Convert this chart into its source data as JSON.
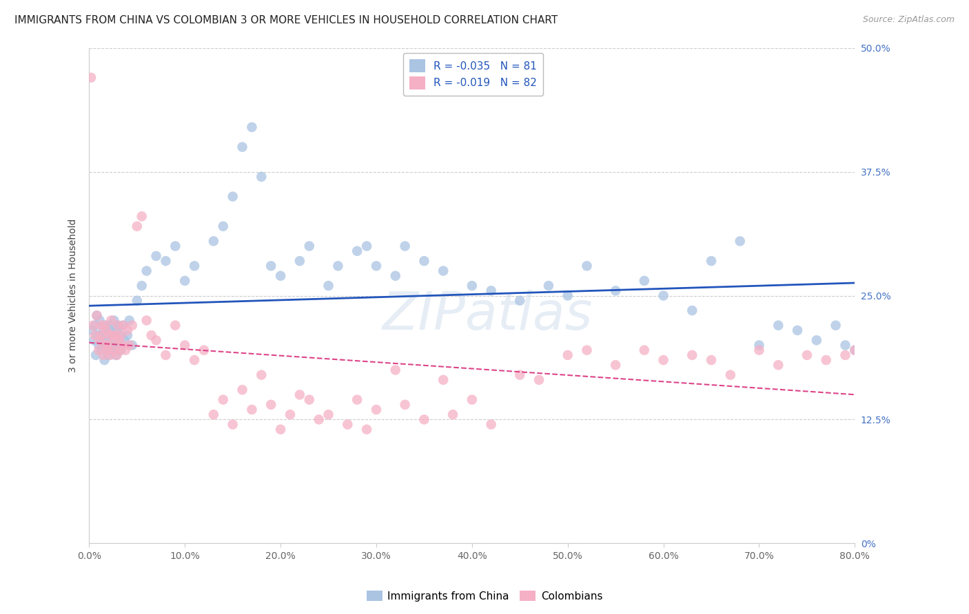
{
  "title": "IMMIGRANTS FROM CHINA VS COLOMBIAN 3 OR MORE VEHICLES IN HOUSEHOLD CORRELATION CHART",
  "source": "Source: ZipAtlas.com",
  "ylabel": "3 or more Vehicles in Household",
  "xlim": [
    0,
    80
  ],
  "ylim": [
    0,
    50
  ],
  "xticks": [
    0,
    10,
    20,
    30,
    40,
    50,
    60,
    70,
    80
  ],
  "yticks": [
    0,
    12.5,
    25,
    37.5,
    50
  ],
  "series1": {
    "label": "Immigrants from China",
    "R": -0.035,
    "N": 81,
    "color": "#aac4e2",
    "line_color": "#2255bb",
    "x": [
      0.3,
      0.5,
      0.6,
      0.7,
      0.8,
      0.9,
      1.0,
      1.1,
      1.2,
      1.3,
      1.4,
      1.5,
      1.6,
      1.7,
      1.8,
      1.9,
      2.0,
      2.1,
      2.2,
      2.3,
      2.4,
      2.5,
      2.6,
      2.7,
      2.8,
      2.9,
      3.0,
      3.1,
      3.2,
      3.3,
      3.5,
      3.7,
      4.0,
      4.2,
      4.5,
      5.0,
      5.5,
      6.0,
      7.0,
      8.0,
      9.0,
      10.0,
      11.0,
      13.0,
      14.0,
      15.0,
      16.0,
      17.0,
      18.0,
      19.0,
      20.0,
      22.0,
      23.0,
      25.0,
      26.0,
      28.0,
      29.0,
      30.0,
      32.0,
      33.0,
      35.0,
      37.0,
      40.0,
      42.0,
      45.0,
      48.0,
      50.0,
      52.0,
      55.0,
      58.0,
      60.0,
      63.0,
      65.0,
      68.0,
      70.0,
      72.0,
      74.0,
      76.0,
      78.0,
      79.0,
      80.0
    ],
    "y": [
      21.5,
      20.5,
      22.0,
      19.0,
      23.0,
      21.0,
      20.0,
      22.5,
      21.0,
      19.5,
      20.0,
      21.5,
      18.5,
      22.0,
      20.5,
      21.0,
      19.0,
      22.0,
      21.5,
      19.5,
      20.0,
      21.0,
      22.5,
      20.0,
      19.0,
      21.5,
      22.0,
      20.5,
      21.0,
      19.5,
      22.0,
      20.5,
      21.0,
      22.5,
      20.0,
      24.5,
      26.0,
      27.5,
      29.0,
      28.5,
      30.0,
      26.5,
      28.0,
      30.5,
      32.0,
      35.0,
      40.0,
      42.0,
      37.0,
      28.0,
      27.0,
      28.5,
      30.0,
      26.0,
      28.0,
      29.5,
      30.0,
      28.0,
      27.0,
      30.0,
      28.5,
      27.5,
      26.0,
      25.5,
      24.5,
      26.0,
      25.0,
      28.0,
      25.5,
      26.5,
      25.0,
      23.5,
      28.5,
      30.5,
      20.0,
      22.0,
      21.5,
      20.5,
      22.0,
      20.0,
      19.5
    ]
  },
  "series2": {
    "label": "Colombians",
    "R": -0.019,
    "N": 82,
    "color": "#f5b0c5",
    "line_color": "#dd4488",
    "x": [
      0.2,
      0.4,
      0.6,
      0.8,
      1.0,
      1.1,
      1.2,
      1.3,
      1.5,
      1.6,
      1.7,
      1.8,
      1.9,
      2.0,
      2.1,
      2.2,
      2.3,
      2.5,
      2.6,
      2.7,
      2.8,
      2.9,
      3.0,
      3.1,
      3.2,
      3.3,
      3.5,
      3.6,
      3.8,
      4.0,
      4.2,
      4.5,
      5.0,
      5.5,
      6.0,
      6.5,
      7.0,
      8.0,
      9.0,
      10.0,
      11.0,
      12.0,
      13.0,
      14.0,
      15.0,
      16.0,
      17.0,
      18.0,
      19.0,
      20.0,
      21.0,
      22.0,
      23.0,
      24.0,
      25.0,
      27.0,
      28.0,
      29.0,
      30.0,
      32.0,
      33.0,
      35.0,
      37.0,
      38.0,
      40.0,
      42.0,
      45.0,
      47.0,
      50.0,
      52.0,
      55.0,
      58.0,
      60.0,
      63.0,
      65.0,
      67.0,
      70.0,
      72.0,
      75.0,
      77.0,
      79.0,
      80.0
    ],
    "y": [
      47.0,
      22.0,
      21.0,
      23.0,
      19.5,
      20.5,
      22.0,
      21.0,
      19.0,
      22.0,
      20.0,
      21.5,
      19.5,
      20.0,
      21.0,
      19.0,
      22.5,
      21.0,
      19.5,
      20.5,
      21.0,
      19.0,
      22.0,
      20.5,
      19.5,
      21.0,
      20.0,
      22.0,
      19.5,
      21.5,
      20.0,
      22.0,
      32.0,
      33.0,
      22.5,
      21.0,
      20.5,
      19.0,
      22.0,
      20.0,
      18.5,
      19.5,
      13.0,
      14.5,
      12.0,
      15.5,
      13.5,
      17.0,
      14.0,
      11.5,
      13.0,
      15.0,
      14.5,
      12.5,
      13.0,
      12.0,
      14.5,
      11.5,
      13.5,
      17.5,
      14.0,
      12.5,
      16.5,
      13.0,
      14.5,
      12.0,
      17.0,
      16.5,
      19.0,
      19.5,
      18.0,
      19.5,
      18.5,
      19.0,
      18.5,
      17.0,
      19.5,
      18.0,
      19.0,
      18.5,
      19.0,
      19.5
    ]
  },
  "background_color": "#ffffff",
  "grid_color": "#cccccc",
  "title_fontsize": 11,
  "source_fontsize": 9,
  "label_fontsize": 10,
  "tick_fontsize": 10,
  "legend_fontsize": 11,
  "watermark": "ZIPatlas",
  "watermark_color": "#c8d8ea",
  "watermark_alpha": 0.45
}
